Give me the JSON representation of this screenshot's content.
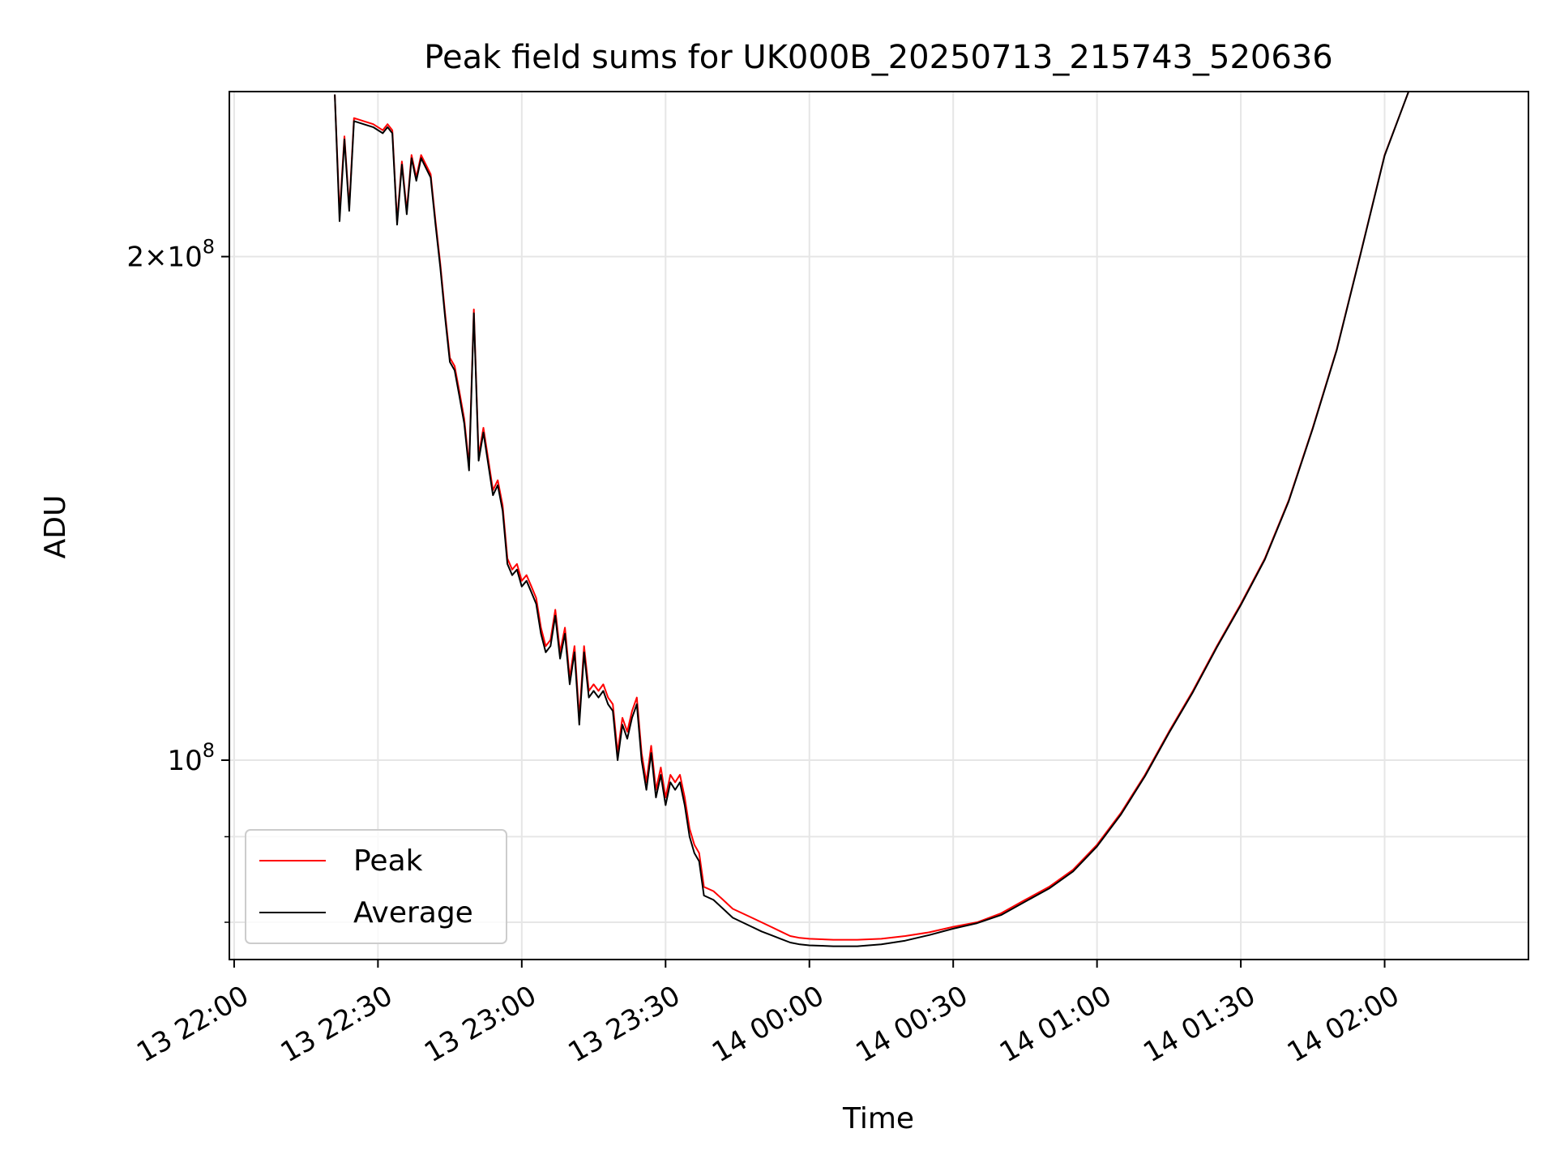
{
  "chart_data": {
    "type": "line",
    "title": "Peak field sums for UK000B_20250713_215743_520636",
    "xlabel": "Time",
    "ylabel": "ADU",
    "x_axis": {
      "type": "time",
      "range": [
        "13 21:59",
        "14 02:30"
      ],
      "ticks": [
        {
          "value": "13 22:00",
          "label": "13 22:00"
        },
        {
          "value": "13 22:30",
          "label": "13 22:30"
        },
        {
          "value": "13 23:00",
          "label": "13 23:00"
        },
        {
          "value": "13 23:30",
          "label": "13 23:30"
        },
        {
          "value": "14 00:00",
          "label": "14 00:00"
        },
        {
          "value": "14 00:30",
          "label": "14 00:30"
        },
        {
          "value": "14 01:00",
          "label": "14 01:00"
        },
        {
          "value": "14 01:30",
          "label": "14 01:30"
        },
        {
          "value": "14 02:00",
          "label": "14 02:00"
        }
      ],
      "tick_label_rotation": 30
    },
    "y_axis": {
      "scale": "log",
      "range": [
        76000000,
        251000000
      ],
      "ticks": [
        {
          "value": 100000000,
          "label": "10^8"
        },
        {
          "value": 200000000,
          "label": "2×10^8"
        }
      ],
      "minor_ticks": [
        80000000,
        90000000
      ]
    },
    "grid": true,
    "legend": {
      "location": "lower-left"
    },
    "series": [
      {
        "name": "Peak",
        "color": "#ff0000",
        "points": [
          [
            "13 22:21",
            250000000.0
          ],
          [
            "13 22:22",
            212000000.0
          ],
          [
            "13 22:23",
            236000000.0
          ],
          [
            "13 22:24",
            214000000.0
          ],
          [
            "13 22:25",
            242000000.0
          ],
          [
            "13 22:27",
            241000000.0
          ],
          [
            "13 22:29",
            240000000.0
          ],
          [
            "13 22:31",
            238000000.0
          ],
          [
            "13 22:32",
            240000000.0
          ],
          [
            "13 22:33",
            238000000.0
          ],
          [
            "13 22:34",
            210000000.0
          ],
          [
            "13 22:35",
            228000000.0
          ],
          [
            "13 22:36",
            213000000.0
          ],
          [
            "13 22:37",
            230000000.0
          ],
          [
            "13 22:38",
            223000000.0
          ],
          [
            "13 22:39",
            230000000.0
          ],
          [
            "13 22:41",
            224000000.0
          ],
          [
            "13 22:42",
            210000000.0
          ],
          [
            "13 22:43",
            198000000.0
          ],
          [
            "13 22:44",
            185000000.0
          ],
          [
            "13 22:45",
            174000000.0
          ],
          [
            "13 22:46",
            172000000.0
          ],
          [
            "13 22:47",
            166000000.0
          ],
          [
            "13 22:48",
            160000000.0
          ],
          [
            "13 22:49",
            150000000.0
          ],
          [
            "13 22:50",
            186000000.0
          ],
          [
            "13 22:51",
            152000000.0
          ],
          [
            "13 22:52",
            158000000.0
          ],
          [
            "13 22:54",
            145000000.0
          ],
          [
            "13 22:55",
            147000000.0
          ],
          [
            "13 22:56",
            142000000.0
          ],
          [
            "13 22:57",
            132000000.0
          ],
          [
            "13 22:58",
            130000000.0
          ],
          [
            "13 22:59",
            131000000.0
          ],
          [
            "13 23:00",
            128000000.0
          ],
          [
            "13 23:01",
            129000000.0
          ],
          [
            "13 23:02",
            127000000.0
          ],
          [
            "13 23:03",
            125000000.0
          ],
          [
            "13 23:04",
            120000000.0
          ],
          [
            "13 23:05",
            117000000.0
          ],
          [
            "13 23:06",
            118000000.0
          ],
          [
            "13 23:07",
            123000000.0
          ],
          [
            "13 23:08",
            116000000.0
          ],
          [
            "13 23:09",
            120000000.0
          ],
          [
            "13 23:10",
            112000000.0
          ],
          [
            "13 23:11",
            117000000.0
          ],
          [
            "13 23:12",
            106000000.0
          ],
          [
            "13 23:13",
            117000000.0
          ],
          [
            "13 23:14",
            110000000.0
          ],
          [
            "13 23:15",
            111000000.0
          ],
          [
            "13 23:16",
            110000000.0
          ],
          [
            "13 23:17",
            111000000.0
          ],
          [
            "13 23:18",
            109000000.0
          ],
          [
            "13 23:19",
            108000000.0
          ],
          [
            "13 23:20",
            101000000.0
          ],
          [
            "13 23:21",
            106000000.0
          ],
          [
            "13 23:22",
            104000000.0
          ],
          [
            "13 23:23",
            107000000.0
          ],
          [
            "13 23:24",
            109000000.0
          ],
          [
            "13 23:25",
            101000000.0
          ],
          [
            "13 23:26",
            97000000.0
          ],
          [
            "13 23:27",
            102000000.0
          ],
          [
            "13 23:28",
            96000000.0
          ],
          [
            "13 23:29",
            99000000.0
          ],
          [
            "13 23:30",
            95000000.0
          ],
          [
            "13 23:31",
            98000000.0
          ],
          [
            "13 23:32",
            97000000.0
          ],
          [
            "13 23:33",
            98000000.0
          ],
          [
            "13 23:34",
            95000000.0
          ],
          [
            "13 23:35",
            91000000.0
          ],
          [
            "13 23:36",
            89000000.0
          ],
          [
            "13 23:37",
            88000000.0
          ],
          [
            "13 23:38",
            84000000.0
          ],
          [
            "13 23:40",
            83500000.0
          ],
          [
            "13 23:42",
            82500000.0
          ],
          [
            "13 23:44",
            81500000.0
          ],
          [
            "13 23:46",
            81000000.0
          ],
          [
            "13 23:48",
            80500000.0
          ],
          [
            "13 23:50",
            80000000.0
          ],
          [
            "13 23:52",
            79500000.0
          ],
          [
            "13 23:54",
            79000000.0
          ],
          [
            "13 23:56",
            78500000.0
          ],
          [
            "13 23:58",
            78300000.0
          ],
          [
            "14 00:00",
            78200000.0
          ],
          [
            "14 00:05",
            78100000.0
          ],
          [
            "14 00:10",
            78100000.0
          ],
          [
            "14 00:15",
            78200000.0
          ],
          [
            "14 00:20",
            78500000.0
          ],
          [
            "14 00:25",
            78900000.0
          ],
          [
            "14 00:30",
            79500000.0
          ],
          [
            "14 00:35",
            80000000.0
          ],
          [
            "14 00:40",
            81000000.0
          ],
          [
            "14 00:45",
            82500000.0
          ],
          [
            "14 00:50",
            84000000.0
          ],
          [
            "14 00:55",
            86000000.0
          ],
          [
            "14 01:00",
            89000000.0
          ],
          [
            "14 01:05",
            93000000.0
          ],
          [
            "14 01:10",
            98000000.0
          ],
          [
            "14 01:15",
            104000000.0
          ],
          [
            "14 01:20",
            110000000.0
          ],
          [
            "14 01:25",
            117000000.0
          ],
          [
            "14 01:30",
            124000000.0
          ],
          [
            "14 01:35",
            132000000.0
          ],
          [
            "14 01:40",
            143000000.0
          ],
          [
            "14 01:45",
            158000000.0
          ],
          [
            "14 01:50",
            176000000.0
          ],
          [
            "14 01:55",
            201000000.0
          ],
          [
            "14 02:00",
            230000000.0
          ],
          [
            "14 02:05",
            251000000.0
          ]
        ]
      },
      {
        "name": "Average",
        "color": "#000000",
        "points": [
          [
            "13 22:21",
            250000000.0
          ],
          [
            "13 22:22",
            210000000.0
          ],
          [
            "13 22:23",
            235000000.0
          ],
          [
            "13 22:24",
            213000000.0
          ],
          [
            "13 22:25",
            241000000.0
          ],
          [
            "13 22:27",
            240000000.0
          ],
          [
            "13 22:29",
            239000000.0
          ],
          [
            "13 22:31",
            237000000.0
          ],
          [
            "13 22:32",
            239000000.0
          ],
          [
            "13 22:33",
            237000000.0
          ],
          [
            "13 22:34",
            209000000.0
          ],
          [
            "13 22:35",
            227000000.0
          ],
          [
            "13 22:36",
            212000000.0
          ],
          [
            "13 22:37",
            229000000.0
          ],
          [
            "13 22:38",
            222000000.0
          ],
          [
            "13 22:39",
            229000000.0
          ],
          [
            "13 22:41",
            223000000.0
          ],
          [
            "13 22:42",
            209000000.0
          ],
          [
            "13 22:43",
            197000000.0
          ],
          [
            "13 22:44",
            184000000.0
          ],
          [
            "13 22:45",
            173000000.0
          ],
          [
            "13 22:46",
            171000000.0
          ],
          [
            "13 22:47",
            165000000.0
          ],
          [
            "13 22:48",
            159000000.0
          ],
          [
            "13 22:49",
            149000000.0
          ],
          [
            "13 22:50",
            185000000.0
          ],
          [
            "13 22:51",
            151000000.0
          ],
          [
            "13 22:52",
            157000000.0
          ],
          [
            "13 22:54",
            144000000.0
          ],
          [
            "13 22:55",
            146000000.0
          ],
          [
            "13 22:56",
            141000000.0
          ],
          [
            "13 22:57",
            131000000.0
          ],
          [
            "13 22:58",
            129000000.0
          ],
          [
            "13 22:59",
            130000000.0
          ],
          [
            "13 23:00",
            127000000.0
          ],
          [
            "13 23:01",
            128000000.0
          ],
          [
            "13 23:02",
            126000000.0
          ],
          [
            "13 23:03",
            124000000.0
          ],
          [
            "13 23:04",
            119000000.0
          ],
          [
            "13 23:05",
            116000000.0
          ],
          [
            "13 23:06",
            117000000.0
          ],
          [
            "13 23:07",
            122000000.0
          ],
          [
            "13 23:08",
            115000000.0
          ],
          [
            "13 23:09",
            119000000.0
          ],
          [
            "13 23:10",
            111000000.0
          ],
          [
            "13 23:11",
            116000000.0
          ],
          [
            "13 23:12",
            105000000.0
          ],
          [
            "13 23:13",
            116000000.0
          ],
          [
            "13 23:14",
            109000000.0
          ],
          [
            "13 23:15",
            110000000.0
          ],
          [
            "13 23:16",
            109000000.0
          ],
          [
            "13 23:17",
            110000000.0
          ],
          [
            "13 23:18",
            108000000.0
          ],
          [
            "13 23:19",
            107000000.0
          ],
          [
            "13 23:20",
            100000000.0
          ],
          [
            "13 23:21",
            105000000.0
          ],
          [
            "13 23:22",
            103000000.0
          ],
          [
            "13 23:23",
            106000000.0
          ],
          [
            "13 23:24",
            108000000.0
          ],
          [
            "13 23:25",
            100000000.0
          ],
          [
            "13 23:26",
            96000000.0
          ],
          [
            "13 23:27",
            101000000.0
          ],
          [
            "13 23:28",
            95000000.0
          ],
          [
            "13 23:29",
            98000000.0
          ],
          [
            "13 23:30",
            94000000.0
          ],
          [
            "13 23:31",
            97000000.0
          ],
          [
            "13 23:32",
            96000000.0
          ],
          [
            "13 23:33",
            97000000.0
          ],
          [
            "13 23:34",
            94000000.0
          ],
          [
            "13 23:35",
            90000000.0
          ],
          [
            "13 23:36",
            88000000.0
          ],
          [
            "13 23:37",
            87000000.0
          ],
          [
            "13 23:38",
            83000000.0
          ],
          [
            "13 23:40",
            82500000.0
          ],
          [
            "13 23:42",
            81500000.0
          ],
          [
            "13 23:44",
            80500000.0
          ],
          [
            "13 23:46",
            80000000.0
          ],
          [
            "13 23:48",
            79500000.0
          ],
          [
            "13 23:50",
            79000000.0
          ],
          [
            "13 23:52",
            78600000.0
          ],
          [
            "13 23:54",
            78200000.0
          ],
          [
            "13 23:56",
            77800000.0
          ],
          [
            "13 23:58",
            77600000.0
          ],
          [
            "14 00:00",
            77500000.0
          ],
          [
            "14 00:05",
            77400000.0
          ],
          [
            "14 00:10",
            77400000.0
          ],
          [
            "14 00:15",
            77600000.0
          ],
          [
            "14 00:20",
            78000000.0
          ],
          [
            "14 00:25",
            78600000.0
          ],
          [
            "14 00:30",
            79300000.0
          ],
          [
            "14 00:35",
            79900000.0
          ],
          [
            "14 00:40",
            80800000.0
          ],
          [
            "14 00:45",
            82300000.0
          ],
          [
            "14 00:50",
            83800000.0
          ],
          [
            "14 00:55",
            85800000.0
          ],
          [
            "14 01:00",
            88800000.0
          ],
          [
            "14 01:05",
            92800000.0
          ],
          [
            "14 01:10",
            97800000.0
          ],
          [
            "14 01:15",
            103800000.0
          ],
          [
            "14 01:20",
            109800000.0
          ],
          [
            "14 01:25",
            116800000.0
          ],
          [
            "14 01:30",
            123800000.0
          ],
          [
            "14 01:35",
            131800000.0
          ],
          [
            "14 01:40",
            142800000.0
          ],
          [
            "14 01:45",
            157800000.0
          ],
          [
            "14 01:50",
            175800000.0
          ],
          [
            "14 01:55",
            200800000.0
          ],
          [
            "14 02:00",
            229800000.0
          ],
          [
            "14 02:05",
            251000000.0
          ]
        ]
      }
    ]
  }
}
